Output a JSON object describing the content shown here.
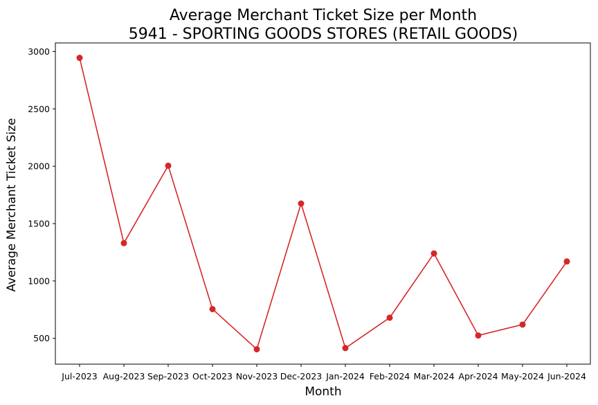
{
  "chart_data": {
    "type": "line",
    "title": "Average Merchant Ticket Size per Month",
    "subtitle": "5941 - SPORTING GOODS STORES (RETAIL GOODS)",
    "xlabel": "Month",
    "ylabel": "Average Merchant Ticket Size",
    "categories": [
      "Jul-2023",
      "Aug-2023",
      "Sep-2023",
      "Oct-2023",
      "Nov-2023",
      "Dec-2023",
      "Jan-2024",
      "Feb-2024",
      "Mar-2024",
      "Apr-2024",
      "May-2024",
      "Jun-2024"
    ],
    "series": [
      {
        "values": [
          2945,
          1330,
          2005,
          755,
          405,
          1675,
          415,
          680,
          1240,
          525,
          620,
          1170
        ],
        "color": "#d62728",
        "marker": "circle"
      }
    ],
    "yticks": [
      500,
      1000,
      1500,
      2000,
      2500,
      3000
    ],
    "ylim": [
      275,
      3075
    ],
    "grid": false,
    "legend": "none"
  }
}
